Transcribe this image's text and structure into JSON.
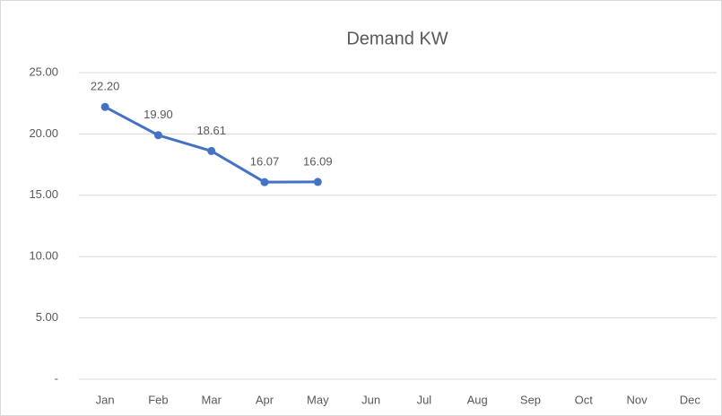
{
  "chart_data": {
    "type": "line",
    "title": "Demand KW",
    "categories": [
      "Jan",
      "Feb",
      "Mar",
      "Apr",
      "May",
      "Jun",
      "Jul",
      "Aug",
      "Sep",
      "Oct",
      "Nov",
      "Dec"
    ],
    "series": [
      {
        "name": "Demand KW",
        "color": "#4472c4",
        "values": [
          22.2,
          19.9,
          18.61,
          16.07,
          16.09,
          null,
          null,
          null,
          null,
          null,
          null,
          null
        ],
        "value_labels": [
          "22.20",
          "19.90",
          "18.61",
          "16.07",
          "16.09",
          null,
          null,
          null,
          null,
          null,
          null,
          null
        ]
      }
    ],
    "ylim": [
      0,
      25
    ],
    "yticks": [
      {
        "value": 0,
        "label": "-"
      },
      {
        "value": 5,
        "label": "5.00"
      },
      {
        "value": 10,
        "label": "10.00"
      },
      {
        "value": 15,
        "label": "15.00"
      },
      {
        "value": 20,
        "label": "20.00"
      },
      {
        "value": 25,
        "label": "25.00"
      }
    ],
    "grid": true
  }
}
